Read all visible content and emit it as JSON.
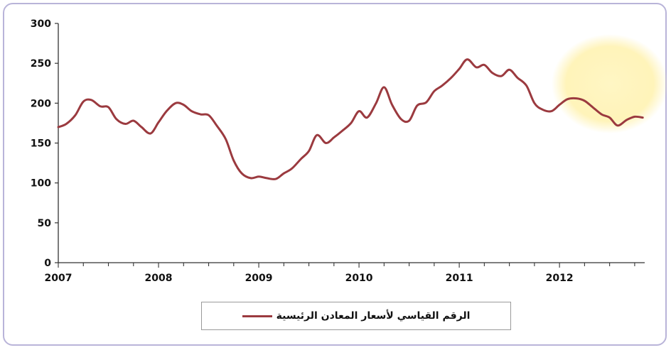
{
  "chart_data": {
    "type": "line",
    "title": "",
    "xlabel": "",
    "ylabel": "",
    "ylim": [
      0,
      300
    ],
    "yticks": [
      0,
      50,
      100,
      150,
      200,
      250,
      300
    ],
    "xlim": [
      2007,
      2012.85
    ],
    "xticks": [
      "2007",
      "2008",
      "2009",
      "2010",
      "2011",
      "2012"
    ],
    "grid": false,
    "legend_position": "bottom",
    "series": [
      {
        "name": "الرقم القياسي لأسعار المعادن الرئيسية",
        "color": "#9b3a3f",
        "x": [
          2007.0,
          2007.08,
          2007.17,
          2007.25,
          2007.33,
          2007.42,
          2007.5,
          2007.58,
          2007.67,
          2007.75,
          2007.83,
          2007.92,
          2008.0,
          2008.08,
          2008.17,
          2008.25,
          2008.33,
          2008.42,
          2008.5,
          2008.58,
          2008.67,
          2008.75,
          2008.83,
          2008.92,
          2009.0,
          2009.08,
          2009.17,
          2009.25,
          2009.33,
          2009.42,
          2009.5,
          2009.58,
          2009.67,
          2009.75,
          2009.83,
          2009.92,
          2010.0,
          2010.08,
          2010.17,
          2010.25,
          2010.33,
          2010.42,
          2010.5,
          2010.58,
          2010.67,
          2010.75,
          2010.83,
          2010.92,
          2011.0,
          2011.08,
          2011.17,
          2011.25,
          2011.33,
          2011.42,
          2011.5,
          2011.58,
          2011.67,
          2011.75,
          2011.83,
          2011.92,
          2012.0,
          2012.08,
          2012.17,
          2012.25,
          2012.33,
          2012.42,
          2012.5,
          2012.58,
          2012.67,
          2012.75,
          2012.83
        ],
        "values": [
          170,
          174,
          185,
          202,
          204,
          196,
          195,
          180,
          174,
          178,
          170,
          162,
          176,
          190,
          200,
          198,
          190,
          186,
          185,
          172,
          155,
          128,
          112,
          106,
          108,
          106,
          105,
          112,
          118,
          130,
          140,
          160,
          150,
          157,
          165,
          175,
          190,
          182,
          200,
          220,
          198,
          180,
          178,
          197,
          201,
          215,
          222,
          232,
          243,
          255,
          245,
          248,
          238,
          234,
          242,
          232,
          222,
          200,
          192,
          190,
          198,
          205,
          206,
          203,
          195,
          186,
          182,
          172,
          179,
          183,
          182
        ]
      }
    ]
  }
}
